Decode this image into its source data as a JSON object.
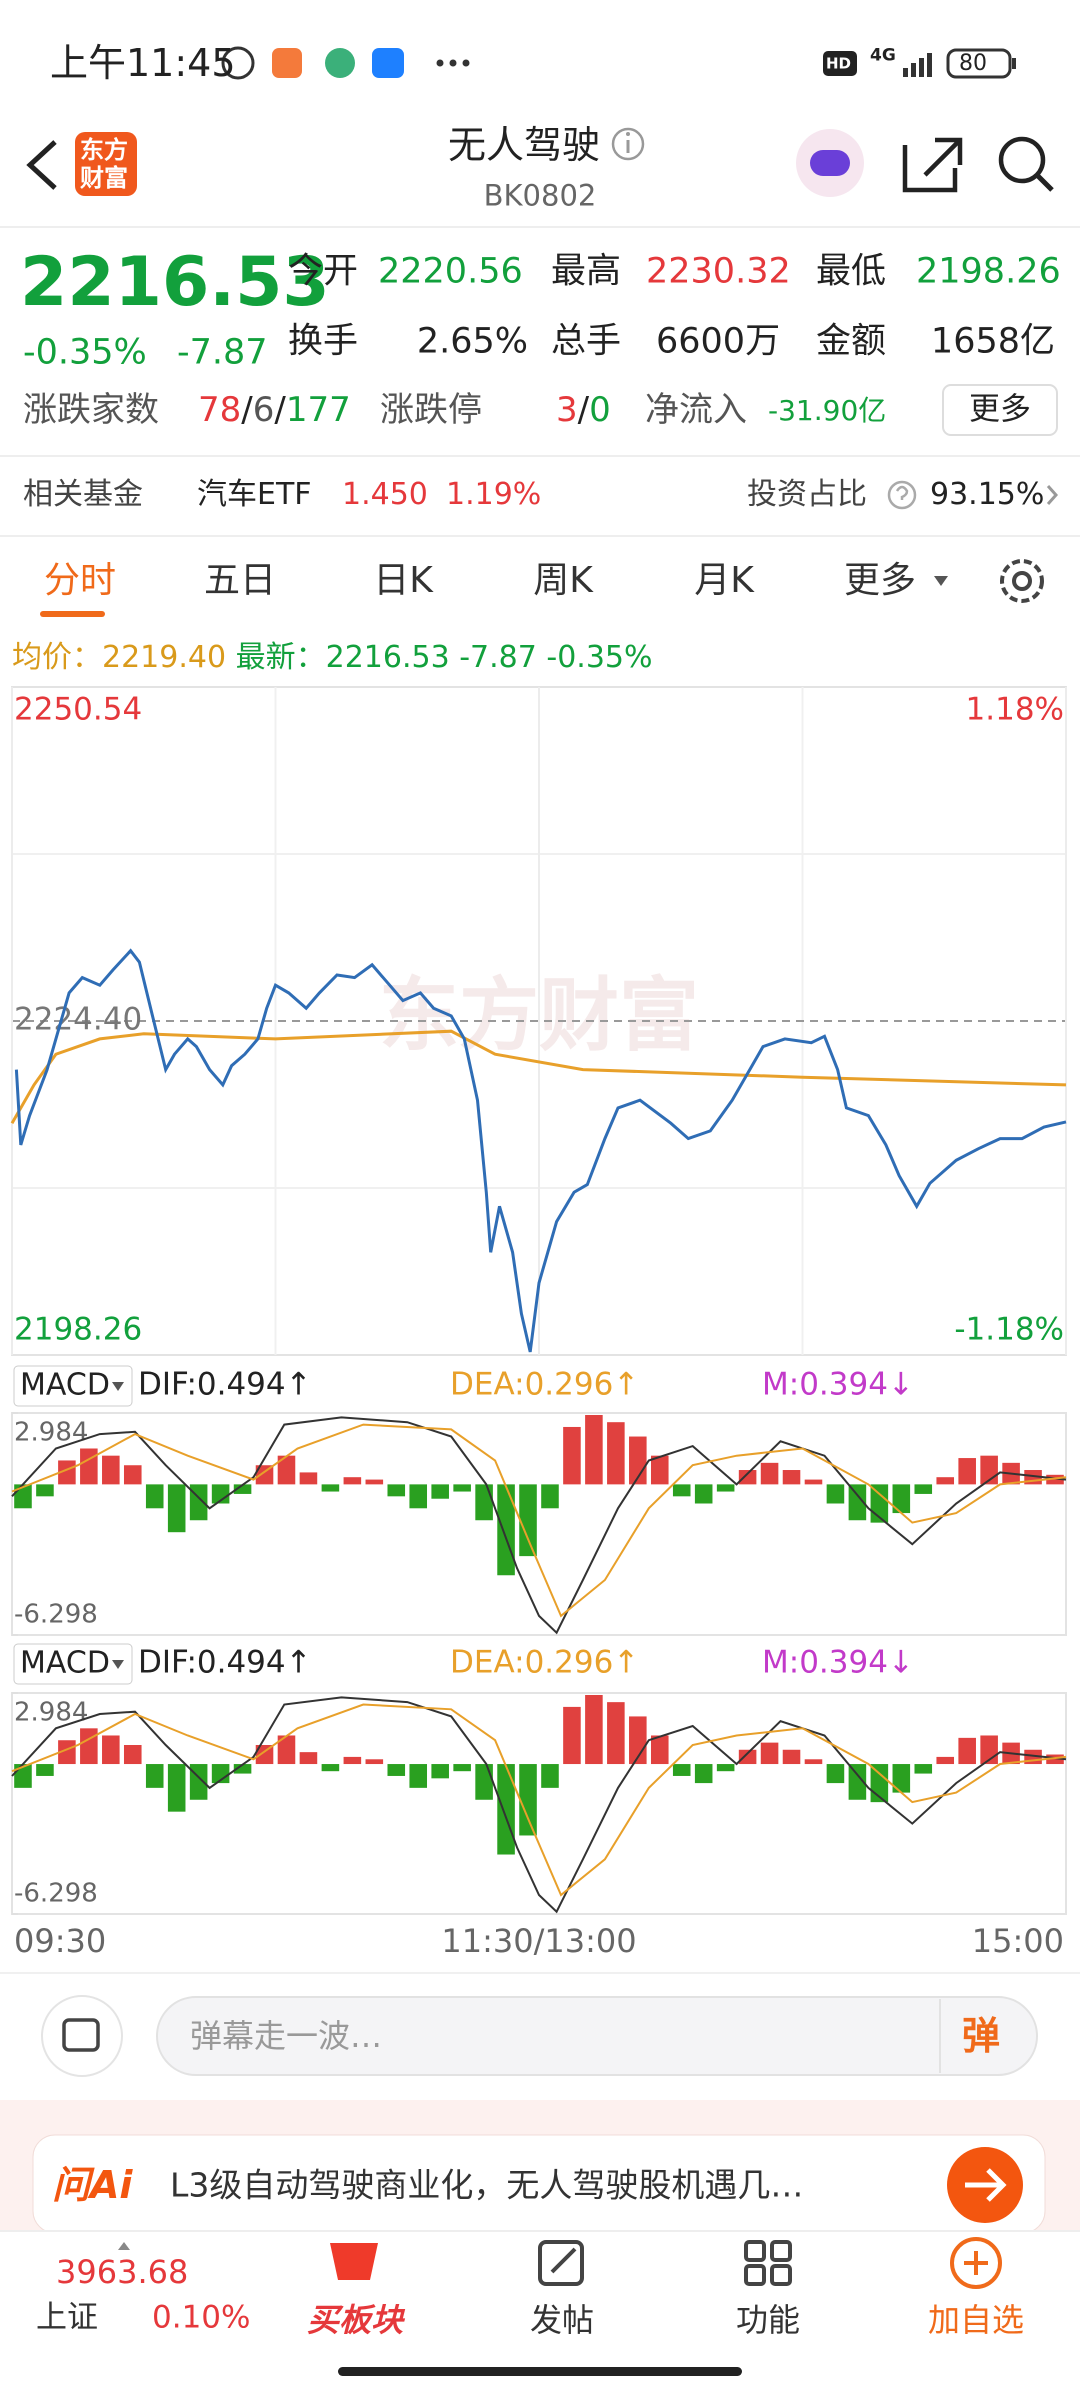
{
  "status_bar": {
    "time": "上午11:45",
    "hd": "HD",
    "network": "4G",
    "battery": "80"
  },
  "header": {
    "logo": [
      "东方",
      "财富"
    ],
    "title": "无人驾驶",
    "code": "BK0802"
  },
  "quote": {
    "price": "2216.53",
    "change_pct": "-0.35%",
    "change": "-7.87",
    "fields": [
      {
        "label": "今开",
        "value": "2220.56"
      },
      {
        "label": "最高",
        "value": "2230.32"
      },
      {
        "label": "最低",
        "value": "2198.26"
      },
      {
        "label": "换手",
        "value": "2.65%"
      },
      {
        "label": "总手",
        "value": "6600万"
      },
      {
        "label": "金额",
        "value": "1658亿"
      }
    ],
    "breadth": {
      "label": "涨跌家数",
      "parts": [
        "78",
        "/",
        "6",
        "/",
        "177"
      ]
    },
    "limit": {
      "label": "涨跌停",
      "parts": [
        "3",
        "/",
        "0"
      ]
    },
    "net_inflow": {
      "label": "净流入",
      "value": "-31.90亿"
    },
    "more_button": "更多"
  },
  "fund": {
    "label": "相关基金",
    "name": "汽车ETF",
    "price": "1.450",
    "change": "1.19%",
    "ratio_label": "投资占比",
    "ratio": "93.15%"
  },
  "tabs": [
    "分时",
    "五日",
    "日K",
    "周K",
    "月K",
    "更多"
  ],
  "summary": {
    "avg_label": "均价：",
    "avg": "2219.40",
    "latest_label": "最新：",
    "latest": "2216.53",
    "change": "-7.87",
    "change_pct": "-0.35%"
  },
  "chart": {
    "type": "line",
    "watermark": "东方财富",
    "xlim": [
      0,
      240
    ],
    "xticks": [
      {
        "value": 0,
        "label": "09:30"
      },
      {
        "value": 120,
        "label": "11:30/13:00"
      },
      {
        "value": 240,
        "label": "15:00"
      }
    ],
    "ylim": [
      2198.26,
      2250.54
    ],
    "yticks": [
      2250.54,
      {
        "value": 2224.4,
        "label": "2224.40"
      },
      2198.26
    ],
    "y2lim": [
      -1.18,
      1.18
    ],
    "y2ticks": [
      {
        "value": 1.18,
        "label": "1.18%"
      },
      {
        "value": -1.18,
        "label": "-1.18%"
      }
    ],
    "series": [
      {
        "color": "#2f6db5",
        "x": [
          1,
          2,
          4,
          8,
          13,
          16,
          20,
          23,
          27,
          29,
          32,
          35,
          37,
          40,
          42,
          45,
          48,
          50,
          53,
          56,
          58,
          60,
          63,
          67,
          70,
          74,
          78,
          82,
          86,
          89,
          93,
          96,
          100,
          103,
          106,
          108,
          109,
          111,
          114,
          116,
          118,
          120,
          122,
          124,
          128,
          131,
          135,
          138,
          143,
          150,
          154,
          159,
          164,
          168,
          171,
          176,
          182,
          185,
          188,
          190,
          195,
          199,
          202,
          206,
          209,
          215,
          220,
          225,
          230,
          235,
          240
        ],
        "values": [
          2220.6,
          2214.7,
          2217.0,
          2220.6,
          2226.6,
          2227.8,
          2227.2,
          2228.4,
          2229.9,
          2229.0,
          2224.8,
          2220.6,
          2221.8,
          2223.0,
          2222.4,
          2220.6,
          2219.4,
          2220.9,
          2221.8,
          2223.0,
          2225.4,
          2227.2,
          2226.6,
          2225.4,
          2226.6,
          2228.0,
          2227.8,
          2228.8,
          2227.2,
          2226.0,
          2226.6,
          2225.4,
          2224.8,
          2223.0,
          2218.2,
          2211.0,
          2206.3,
          2209.9,
          2206.3,
          2201.5,
          2198.5,
          2203.9,
          2206.3,
          2208.7,
          2211.0,
          2211.6,
          2215.2,
          2217.6,
          2218.2,
          2216.4,
          2215.2,
          2215.8,
          2218.2,
          2220.6,
          2222.4,
          2223.0,
          2222.7,
          2223.2,
          2220.6,
          2217.6,
          2217.0,
          2214.7,
          2212.3,
          2209.9,
          2211.7,
          2213.5,
          2214.4,
          2215.2,
          2215.2,
          2216.1,
          2216.5
        ]
      },
      {
        "color": "#e8a02a",
        "x": [
          0,
          5,
          10,
          20,
          30,
          60,
          100,
          110,
          130,
          180,
          240
        ],
        "values": [
          2216.4,
          2219.4,
          2221.8,
          2223.0,
          2223.4,
          2223.0,
          2223.6,
          2221.8,
          2220.6,
          2220.0,
          2219.4
        ]
      }
    ]
  },
  "macd": {
    "type": "bar",
    "indicator": "MACD",
    "dif": "DIF:0.494↑",
    "dea": "DEA:0.296↑",
    "m": "M:0.394↓",
    "xlim": [
      0,
      240
    ],
    "ylim": [
      -6.298,
      2.984
    ],
    "yticks": [
      2.984,
      -6.298
    ],
    "up_color": "#e0413f",
    "down_color": "#2aa020",
    "x": [
      0,
      5,
      10,
      15,
      20,
      25,
      30,
      35,
      40,
      45,
      50,
      55,
      60,
      65,
      70,
      75,
      80,
      85,
      90,
      95,
      100,
      105,
      110,
      115,
      120,
      125,
      130,
      135,
      140,
      145,
      150,
      155,
      160,
      165,
      170,
      175,
      180,
      185,
      190,
      195,
      200,
      205,
      210,
      215,
      220,
      225,
      230,
      235
    ],
    "values": [
      -1.0,
      -0.5,
      1.0,
      1.5,
      1.2,
      0.8,
      -1.0,
      -2.0,
      -1.5,
      -0.8,
      -0.4,
      0.8,
      1.2,
      0.5,
      -0.3,
      0.3,
      0.2,
      -0.5,
      -1.0,
      -0.6,
      -0.3,
      -1.5,
      -3.8,
      -3.0,
      -1.0,
      2.4,
      2.9,
      2.6,
      2.0,
      1.2,
      -0.5,
      -0.8,
      -0.3,
      0.6,
      0.9,
      0.6,
      0.2,
      -0.8,
      -1.5,
      -1.6,
      -1.2,
      -0.4,
      0.3,
      1.1,
      1.2,
      0.9,
      0.6,
      0.4
    ],
    "lines": [
      {
        "color": "#333333",
        "x": [
          0,
          10,
          20,
          28,
          35,
          45,
          55,
          62,
          75,
          90,
          100,
          108,
          115,
          120,
          124,
          130,
          138,
          145,
          155,
          165,
          175,
          185,
          195,
          205,
          215,
          225,
          240
        ],
        "values": [
          -0.5,
          1.5,
          2.1,
          2.2,
          0.8,
          -1.0,
          0.3,
          2.5,
          2.8,
          2.6,
          2.0,
          0.0,
          -3.5,
          -5.5,
          -6.2,
          -4.0,
          -1.0,
          1.0,
          1.6,
          0.0,
          1.8,
          1.2,
          -1.0,
          -2.5,
          -0.8,
          0.5,
          0.2
        ]
      },
      {
        "color": "#e8a02a",
        "x": [
          0,
          15,
          28,
          40,
          55,
          65,
          80,
          100,
          110,
          118,
          125,
          135,
          145,
          155,
          165,
          180,
          195,
          205,
          215,
          225,
          240
        ],
        "values": [
          -0.3,
          0.8,
          2.1,
          1.2,
          0.2,
          1.5,
          2.5,
          2.3,
          1.0,
          -2.5,
          -5.5,
          -4.0,
          -1.0,
          0.8,
          1.2,
          1.5,
          0.0,
          -1.6,
          -1.2,
          0.0,
          0.3
        ]
      }
    ]
  },
  "comment": {
    "placeholder": "弹幕走一波…",
    "button": "弹"
  },
  "ai": {
    "logo": "问Ai",
    "text": "L3级自动驾驶商业化，无人驾驶股机遇几…"
  },
  "nav": {
    "index_value": "3963.68",
    "index_name": "上证",
    "index_change": "0.10%",
    "items": [
      "买板块",
      "发帖",
      "功能",
      "加自选"
    ]
  }
}
